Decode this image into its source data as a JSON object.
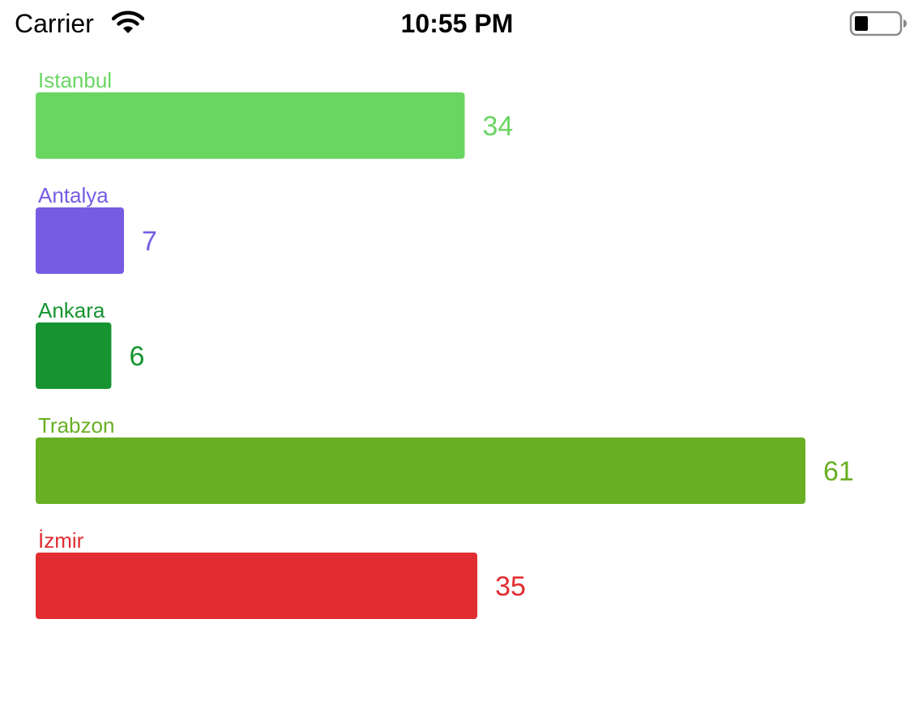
{
  "status_bar": {
    "carrier": "Carrier",
    "time": "10:55 PM",
    "wifi_icon": "wifi-icon",
    "battery_icon": "battery-icon",
    "battery_level": 0.3
  },
  "chart_data": {
    "type": "bar",
    "orientation": "horizontal",
    "categories": [
      "Istanbul",
      "Antalya",
      "Ankara",
      "Trabzon",
      "İzmir"
    ],
    "values": [
      34,
      7,
      6,
      61,
      35
    ],
    "colors": [
      "#6AD662",
      "#765CE3",
      "#169431",
      "#68AF23",
      "#E12D31"
    ],
    "title": "",
    "xlabel": "",
    "ylabel": "",
    "grid": false,
    "legend": "none"
  }
}
